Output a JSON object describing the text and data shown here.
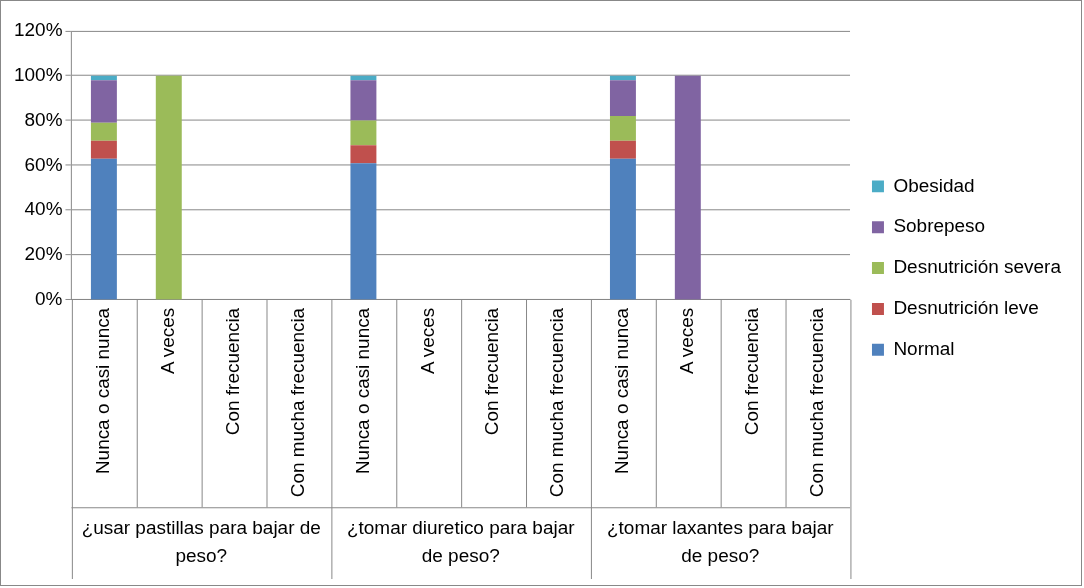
{
  "chart_data": {
    "type": "bar",
    "stacked": true,
    "categories": [
      "Nunca o casi nunca",
      "A veces",
      "Con frecuencia",
      "Con mucha frecuencia",
      "Nunca o casi nunca",
      "A veces",
      "Con frecuencia",
      "Con mucha frecuencia",
      "Nunca o casi nunca",
      "A veces",
      "Con frecuencia",
      "Con mucha frecuencia"
    ],
    "series": [
      {
        "name": "Normal",
        "color": "#4f81bd",
        "values": [
          63,
          0,
          0,
          0,
          61,
          0,
          0,
          0,
          63,
          0,
          0,
          0
        ]
      },
      {
        "name": "Desnutrición leve",
        "color": "#c0504d",
        "values": [
          8,
          0,
          0,
          0,
          8,
          0,
          0,
          0,
          8,
          0,
          0,
          0
        ]
      },
      {
        "name": "Desnutrición severa",
        "color": "#9bbb59",
        "values": [
          8,
          100,
          0,
          0,
          11,
          0,
          0,
          0,
          11,
          0,
          0,
          0
        ]
      },
      {
        "name": "Sobrepeso",
        "color": "#8064a2",
        "values": [
          19,
          0,
          0,
          0,
          18,
          0,
          0,
          0,
          16,
          100,
          0,
          0
        ]
      },
      {
        "name": "Obesidad",
        "color": "#4bacc6",
        "values": [
          2,
          0,
          0,
          0,
          2,
          0,
          0,
          0,
          2,
          0,
          0,
          0
        ]
      }
    ],
    "ylim": [
      0,
      120
    ],
    "yticks": [
      {
        "value": 0,
        "label": "0%"
      },
      {
        "value": 20,
        "label": "20%"
      },
      {
        "value": 40,
        "label": "40%"
      },
      {
        "value": 60,
        "label": "60%"
      },
      {
        "value": 80,
        "label": "80%"
      },
      {
        "value": 100,
        "label": "100%"
      },
      {
        "value": 120,
        "label": "120%"
      }
    ],
    "grid": "y",
    "legend": "right",
    "annotations": [
      "¿usar pastillas para bajar de peso?",
      "¿tomar diuretico para bajar de peso?",
      "¿tomar laxantes para bajar de peso?"
    ]
  }
}
